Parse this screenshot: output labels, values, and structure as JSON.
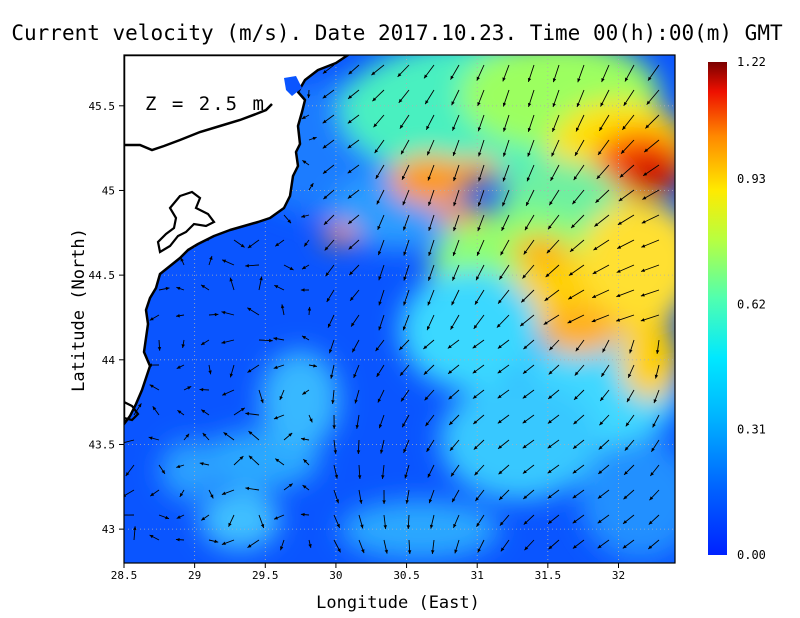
{
  "title": "Current velocity (m/s). Date 2017.10.23. Time 00(h):00(m) GMT",
  "depth_label": "Z = 2.5 m",
  "x_axis": {
    "title": "Longitude (East)",
    "range": [
      28.5,
      32.4
    ],
    "ticks": [
      "28.5",
      "29",
      "29.5",
      "30",
      "30.5",
      "31",
      "31.5",
      "32"
    ]
  },
  "y_axis": {
    "title": "Latitude (North)",
    "range": [
      42.8,
      45.8
    ],
    "ticks": [
      "43",
      "43.5",
      "44",
      "44.5",
      "45",
      "45.5"
    ]
  },
  "colorbar": {
    "min": 0.0,
    "max": 1.22,
    "tick_labels": [
      "0.00",
      "0.31",
      "0.62",
      "0.93",
      "1.22"
    ],
    "colormap": "jet"
  },
  "colors": {
    "land": "#ffffff",
    "coastline": "#000000",
    "arrows": "#000000",
    "grid": "#b0b0b0"
  },
  "grid": "dotted"
}
